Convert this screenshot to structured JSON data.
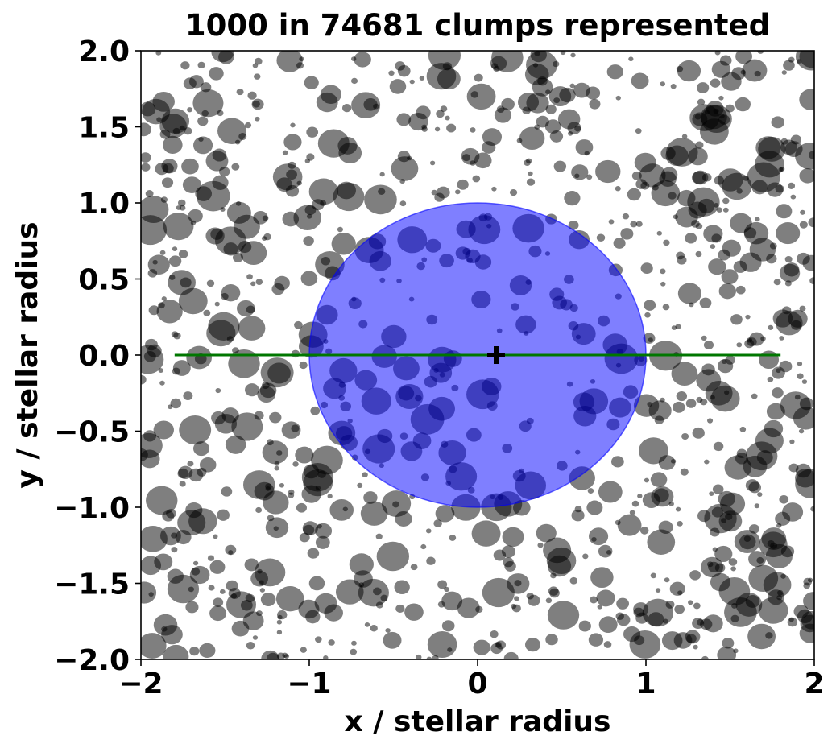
{
  "chart_data": {
    "type": "scatter",
    "title": "1000 in 74681 clumps represented",
    "xlabel": "x / stellar radius",
    "ylabel": "y / stellar radius",
    "xlim": [
      -2,
      2
    ],
    "ylim": [
      -2,
      2
    ],
    "x_ticks": [
      -2,
      -1,
      0,
      1,
      2
    ],
    "x_tick_labels": [
      "−2",
      "−1",
      "0",
      "1",
      "2"
    ],
    "y_ticks": [
      2.0,
      1.5,
      1.0,
      0.5,
      0.0,
      -0.5,
      -1.0,
      -1.5,
      -2.0
    ],
    "y_tick_labels": [
      "2.0",
      "1.5",
      "1.0",
      "0.5",
      "0.0",
      "−0.5",
      "−1.0",
      "−1.5",
      "−2.0"
    ],
    "grid": false,
    "stellar_disk": {
      "center": [
        0,
        0
      ],
      "radius": 1.0,
      "color": "#0000ff",
      "alpha": 0.5
    },
    "transit_chord": {
      "x": [
        -1.8,
        1.8
      ],
      "y": [
        0,
        0
      ],
      "color": "#007700"
    },
    "marker": {
      "x": 0.11,
      "y": 0.0,
      "symbol": "plus",
      "color": "#000000"
    },
    "clumps": {
      "count": 1000,
      "total": 74681,
      "color": "#000000",
      "alpha": 0.5,
      "radius_range": [
        0.015,
        0.1
      ],
      "distribution": "radially increasing density within a square field"
    }
  }
}
